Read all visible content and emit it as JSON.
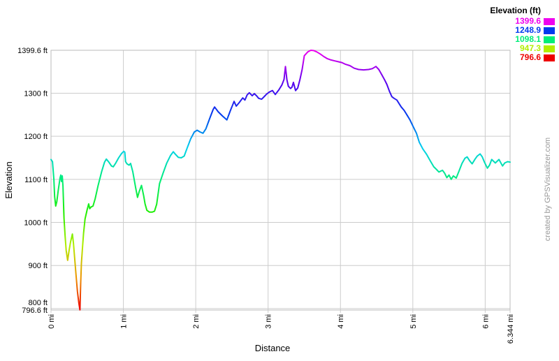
{
  "credit": "created by GPSVisualizer.com",
  "legend": {
    "title": "Elevation (ft)",
    "entries": [
      {
        "label": "1399.6",
        "color": "#ee00ee"
      },
      {
        "label": "1248.9",
        "color": "#003bee"
      },
      {
        "label": "1098.1",
        "color": "#00ee78"
      },
      {
        "label": "947.3",
        "color": "#b2ee00"
      },
      {
        "label": "796.6",
        "color": "#ee0000"
      }
    ]
  },
  "colors": {
    "grid": "#cccccc",
    "border": "#bbbbbb",
    "tick_text": "#000000",
    "credit_text": "#999999",
    "background": "#ffffff"
  },
  "chart_data": {
    "type": "line",
    "title": "",
    "xlabel": "Distance",
    "ylabel": "Elevation",
    "x_unit": "mi",
    "y_unit": "ft",
    "xlim": [
      0,
      6.344
    ],
    "ylim": [
      796.6,
      1399.6
    ],
    "grid": true,
    "legend_position": "top-right",
    "x_ticks": [
      {
        "value": 0,
        "label": "0 mi"
      },
      {
        "value": 1,
        "label": "1 mi"
      },
      {
        "value": 2,
        "label": "2 mi"
      },
      {
        "value": 3,
        "label": "3 mi"
      },
      {
        "value": 4,
        "label": "4 mi"
      },
      {
        "value": 5,
        "label": "5 mi"
      },
      {
        "value": 6,
        "label": "6 mi"
      },
      {
        "value": 6.344,
        "label": "6.344 mi"
      }
    ],
    "y_ticks": [
      {
        "value": 796.6,
        "label": "796.6 ft",
        "dy": 0
      },
      {
        "value": 800,
        "label": "800 ft",
        "dy": -9
      },
      {
        "value": 900,
        "label": "900 ft",
        "dy": 0
      },
      {
        "value": 1000,
        "label": "1000 ft",
        "dy": 0
      },
      {
        "value": 1100,
        "label": "1100 ft",
        "dy": 0
      },
      {
        "value": 1200,
        "label": "1200 ft",
        "dy": 0
      },
      {
        "value": 1300,
        "label": "1300 ft",
        "dy": 0
      },
      {
        "value": 1399.6,
        "label": "1399.6 ft",
        "dy": 0
      }
    ],
    "color_scale": [
      {
        "offset": 0,
        "color": "#ee0000"
      },
      {
        "offset": 0.125,
        "color": "#ee9500"
      },
      {
        "offset": 0.25,
        "color": "#b2ee00"
      },
      {
        "offset": 0.375,
        "color": "#1eee00"
      },
      {
        "offset": 0.5,
        "color": "#00ee78"
      },
      {
        "offset": 0.625,
        "color": "#00d0ee"
      },
      {
        "offset": 0.75,
        "color": "#003bee"
      },
      {
        "offset": 0.875,
        "color": "#5a00ee"
      },
      {
        "offset": 1,
        "color": "#ee00ee"
      }
    ],
    "series": [
      {
        "name": "elevation_profile",
        "x": [
          0,
          0.02,
          0.04,
          0.05,
          0.065,
          0.08,
          0.1,
          0.125,
          0.135,
          0.145,
          0.155,
          0.165,
          0.18,
          0.195,
          0.21,
          0.23,
          0.25,
          0.27,
          0.295,
          0.31,
          0.325,
          0.345,
          0.365,
          0.385,
          0.4,
          0.41,
          0.42,
          0.435,
          0.45,
          0.47,
          0.5,
          0.52,
          0.535,
          0.555,
          0.58,
          0.61,
          0.65,
          0.7,
          0.74,
          0.765,
          0.8,
          0.835,
          0.86,
          0.895,
          0.935,
          0.975,
          1.005,
          1.02,
          1.03,
          1.05,
          1.08,
          1.1,
          1.13,
          1.17,
          1.195,
          1.22,
          1.25,
          1.28,
          1.3,
          1.325,
          1.36,
          1.4,
          1.43,
          1.46,
          1.5,
          1.55,
          1.6,
          1.65,
          1.69,
          1.72,
          1.76,
          1.8,
          1.84,
          1.88,
          1.93,
          1.98,
          2.02,
          2.06,
          2.1,
          2.14,
          2.19,
          2.24,
          2.26,
          2.31,
          2.37,
          2.43,
          2.48,
          2.53,
          2.56,
          2.6,
          2.65,
          2.68,
          2.71,
          2.74,
          2.78,
          2.81,
          2.84,
          2.87,
          2.91,
          2.94,
          2.98,
          3.02,
          3.06,
          3.1,
          3.15,
          3.19,
          3.22,
          3.24,
          3.26,
          3.28,
          3.31,
          3.33,
          3.35,
          3.38,
          3.41,
          3.44,
          3.47,
          3.5,
          3.55,
          3.59,
          3.63,
          3.67,
          3.72,
          3.77,
          3.82,
          3.87,
          3.92,
          3.97,
          4.02,
          4.07,
          4.13,
          4.19,
          4.25,
          4.32,
          4.39,
          4.44,
          4.49,
          4.53,
          4.57,
          4.61,
          4.64,
          4.68,
          4.71,
          4.74,
          4.78,
          4.81,
          4.84,
          4.88,
          4.91,
          4.96,
          5.0,
          5.05,
          5.09,
          5.14,
          5.19,
          5.24,
          5.29,
          5.32,
          5.36,
          5.41,
          5.44,
          5.47,
          5.5,
          5.53,
          5.56,
          5.6,
          5.64,
          5.68,
          5.72,
          5.75,
          5.79,
          5.82,
          5.86,
          5.89,
          5.93,
          5.96,
          5.99,
          6.03,
          6.06,
          6.09,
          6.14,
          6.19,
          6.24,
          6.27,
          6.31,
          6.344
        ],
        "y": [
          1146,
          1141,
          1100,
          1060,
          1038,
          1048,
          1075,
          1103,
          1110,
          1095,
          1108,
          1085,
          1010,
          968,
          935,
          912,
          935,
          955,
          973,
          952,
          920,
          880,
          840,
          812,
          797,
          860,
          905,
          940,
          975,
          1008,
          1030,
          1043,
          1032,
          1036,
          1038,
          1055,
          1085,
          1118,
          1140,
          1147,
          1140,
          1131,
          1129,
          1138,
          1150,
          1160,
          1165,
          1163,
          1141,
          1136,
          1133,
          1137,
          1118,
          1080,
          1058,
          1072,
          1086,
          1062,
          1043,
          1028,
          1024,
          1024,
          1026,
          1042,
          1090,
          1115,
          1138,
          1155,
          1164,
          1158,
          1151,
          1150,
          1154,
          1172,
          1194,
          1210,
          1214,
          1210,
          1207,
          1217,
          1240,
          1262,
          1268,
          1257,
          1247,
          1238,
          1260,
          1281,
          1270,
          1278,
          1289,
          1284,
          1296,
          1301,
          1294,
          1299,
          1294,
          1288,
          1286,
          1291,
          1298,
          1303,
          1306,
          1297,
          1308,
          1319,
          1332,
          1362,
          1331,
          1316,
          1311,
          1314,
          1325,
          1306,
          1312,
          1332,
          1355,
          1387,
          1396,
          1399.6,
          1399,
          1396,
          1391,
          1385,
          1380,
          1377,
          1375,
          1373,
          1371,
          1367,
          1364,
          1358,
          1355,
          1354,
          1355,
          1357,
          1362,
          1355,
          1343,
          1331,
          1321,
          1303,
          1292,
          1288,
          1284,
          1276,
          1268,
          1260,
          1252,
          1238,
          1224,
          1207,
          1186,
          1170,
          1158,
          1143,
          1129,
          1124,
          1117,
          1121,
          1114,
          1104,
          1110,
          1100,
          1108,
          1103,
          1120,
          1137,
          1149,
          1152,
          1142,
          1136,
          1147,
          1154,
          1159,
          1152,
          1140,
          1126,
          1133,
          1146,
          1138,
          1146,
          1131,
          1138,
          1141,
          1140
        ]
      }
    ]
  }
}
